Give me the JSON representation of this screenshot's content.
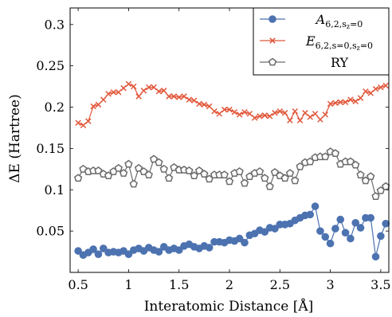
{
  "chart_data": {
    "type": "line",
    "xlabel": "Interatomic Distance [Å]",
    "ylabel": "ΔE (Hartree)",
    "xlim": [
      0.42,
      3.58
    ],
    "ylim": [
      0.0,
      0.32
    ],
    "xticks": [
      0.5,
      1.0,
      1.5,
      2.0,
      2.5,
      3.0,
      3.5
    ],
    "xtick_labels": [
      "0.5",
      "1",
      "1.5",
      "2",
      "2.5",
      "3",
      "3.5"
    ],
    "yticks": [
      0.05,
      0.1,
      0.15,
      0.2,
      0.25,
      0.3
    ],
    "ytick_labels": [
      "0.05",
      "0.1",
      "0.15",
      "0.2",
      "0.25",
      "0.3"
    ],
    "grid": false,
    "legend_position": "top-right",
    "x": [
      0.5,
      0.55,
      0.6,
      0.65,
      0.7,
      0.75,
      0.8,
      0.85,
      0.9,
      0.95,
      1.0,
      1.05,
      1.1,
      1.15,
      1.2,
      1.25,
      1.3,
      1.35,
      1.4,
      1.45,
      1.5,
      1.55,
      1.6,
      1.65,
      1.7,
      1.75,
      1.8,
      1.85,
      1.9,
      1.95,
      2.0,
      2.05,
      2.1,
      2.15,
      2.2,
      2.25,
      2.3,
      2.35,
      2.4,
      2.45,
      2.5,
      2.55,
      2.6,
      2.65,
      2.7,
      2.75,
      2.8,
      2.85,
      2.9,
      2.95,
      3.0,
      3.05,
      3.1,
      3.15,
      3.2,
      3.25,
      3.3,
      3.35,
      3.4,
      3.45,
      3.5,
      3.55
    ],
    "series": [
      {
        "name": "A",
        "name_subscript": "6,2,s",
        "name_subsubscript": "z",
        "name_subscript_tail": "=0",
        "color": "#4c72b0",
        "marker": "circle",
        "values": [
          0.026,
          0.021,
          0.024,
          0.028,
          0.022,
          0.029,
          0.024,
          0.025,
          0.024,
          0.026,
          0.022,
          0.027,
          0.029,
          0.026,
          0.03,
          0.027,
          0.025,
          0.031,
          0.027,
          0.029,
          0.027,
          0.032,
          0.034,
          0.031,
          0.029,
          0.032,
          0.03,
          0.037,
          0.037,
          0.036,
          0.039,
          0.038,
          0.041,
          0.036,
          0.045,
          0.047,
          0.051,
          0.049,
          0.054,
          0.053,
          0.058,
          0.058,
          0.059,
          0.063,
          0.066,
          0.069,
          0.07,
          0.08,
          0.05,
          0.043,
          0.035,
          0.053,
          0.064,
          0.048,
          0.041,
          0.06,
          0.054,
          0.066,
          0.066,
          0.019,
          0.044,
          0.059
        ]
      },
      {
        "name": "E",
        "name_subscript": "6,2,s=0,s",
        "name_subsubscript": "z",
        "name_subscript_tail": "=0",
        "color": "#e1573a",
        "marker": "x",
        "values": [
          0.181,
          0.178,
          0.183,
          0.201,
          0.203,
          0.209,
          0.216,
          0.218,
          0.218,
          0.223,
          0.228,
          0.225,
          0.213,
          0.22,
          0.224,
          0.224,
          0.219,
          0.22,
          0.213,
          0.213,
          0.212,
          0.213,
          0.209,
          0.208,
          0.204,
          0.203,
          0.201,
          0.195,
          0.192,
          0.197,
          0.197,
          0.194,
          0.191,
          0.194,
          0.192,
          0.187,
          0.189,
          0.19,
          0.189,
          0.193,
          0.195,
          0.193,
          0.184,
          0.195,
          0.184,
          0.193,
          0.188,
          0.192,
          0.185,
          0.191,
          0.204,
          0.205,
          0.206,
          0.206,
          0.209,
          0.207,
          0.211,
          0.219,
          0.217,
          0.222,
          0.224,
          0.226
        ]
      },
      {
        "name": "RY",
        "color": "#6b6b6b",
        "marker": "pentagon",
        "values": [
          0.114,
          0.125,
          0.122,
          0.123,
          0.123,
          0.119,
          0.117,
          0.122,
          0.126,
          0.12,
          0.131,
          0.107,
          0.126,
          0.122,
          0.118,
          0.137,
          0.133,
          0.125,
          0.114,
          0.127,
          0.124,
          0.124,
          0.123,
          0.117,
          0.123,
          0.119,
          0.113,
          0.118,
          0.118,
          0.118,
          0.11,
          0.12,
          0.122,
          0.108,
          0.116,
          0.12,
          0.122,
          0.114,
          0.104,
          0.121,
          0.117,
          0.114,
          0.12,
          0.111,
          0.128,
          0.133,
          0.134,
          0.139,
          0.14,
          0.14,
          0.146,
          0.144,
          0.131,
          0.134,
          0.134,
          0.13,
          0.118,
          0.111,
          0.116,
          0.092,
          0.099,
          0.104
        ]
      }
    ]
  }
}
